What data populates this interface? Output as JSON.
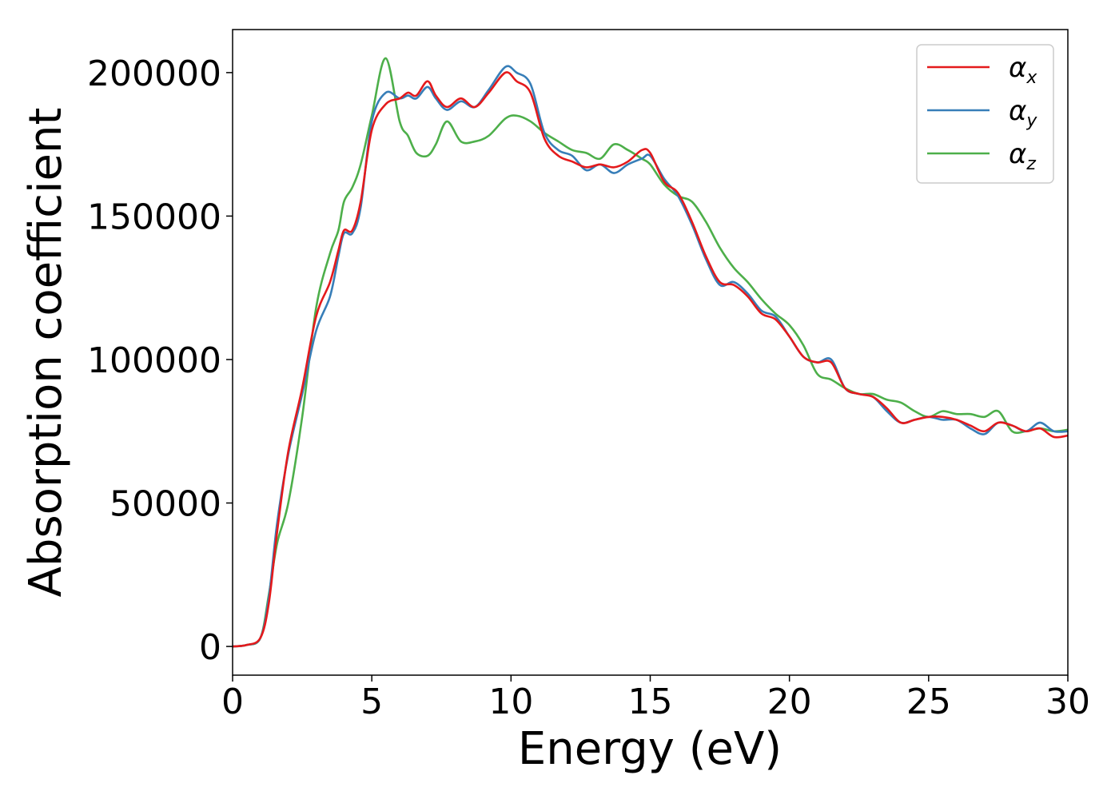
{
  "chart_data": {
    "type": "line",
    "title": "",
    "xlabel": "Energy (eV)",
    "ylabel": "Absorption coefficient",
    "xlim": [
      0,
      30
    ],
    "ylim": [
      -10000,
      215000
    ],
    "xticks": [
      0,
      5,
      10,
      15,
      20,
      25,
      30
    ],
    "yticks": [
      0,
      50000,
      100000,
      150000,
      200000
    ],
    "grid": false,
    "legend_position": "top-right",
    "series": [
      {
        "name": "αx",
        "symbol": "α",
        "subscript": "x",
        "color": "#e41a1c",
        "x": [
          0,
          0.5,
          1.0,
          1.3,
          1.6,
          2.0,
          2.5,
          3.0,
          3.5,
          3.8,
          4.0,
          4.3,
          4.6,
          5.0,
          5.5,
          6.0,
          6.3,
          6.6,
          7.0,
          7.3,
          7.7,
          8.2,
          8.7,
          9.2,
          9.8,
          10.2,
          10.7,
          11.2,
          11.7,
          12.2,
          12.7,
          13.2,
          13.7,
          14.2,
          14.7,
          15.0,
          15.5,
          16.0,
          16.5,
          17.0,
          17.5,
          18.0,
          18.5,
          19.0,
          19.5,
          20.0,
          20.5,
          21.0,
          21.5,
          22.0,
          22.5,
          23.0,
          23.5,
          24.0,
          24.5,
          25.0,
          25.5,
          26.0,
          26.5,
          27.0,
          27.5,
          28.0,
          28.5,
          29.0,
          29.5,
          30.0
        ],
        "y": [
          0,
          500,
          3000,
          15000,
          40000,
          68000,
          90000,
          115000,
          127000,
          138000,
          145000,
          145000,
          155000,
          180000,
          189000,
          191000,
          193000,
          192000,
          197000,
          192000,
          188000,
          191000,
          188000,
          193000,
          200000,
          197000,
          193000,
          177000,
          171000,
          169000,
          167000,
          168000,
          167000,
          169000,
          173000,
          172000,
          162000,
          158000,
          148000,
          136000,
          127000,
          126000,
          122000,
          116000,
          114000,
          108000,
          101000,
          99000,
          99000,
          90000,
          88000,
          87000,
          83000,
          78000,
          79000,
          80000,
          80000,
          79000,
          77000,
          75000,
          78000,
          77000,
          75000,
          76000,
          73000,
          73500
        ]
      },
      {
        "name": "αy",
        "symbol": "α",
        "subscript": "y",
        "color": "#377eb8",
        "x": [
          0,
          0.5,
          1.0,
          1.3,
          1.6,
          2.0,
          2.5,
          3.0,
          3.5,
          3.8,
          4.0,
          4.3,
          4.6,
          5.0,
          5.5,
          6.0,
          6.3,
          6.6,
          7.0,
          7.3,
          7.7,
          8.2,
          8.7,
          9.2,
          9.8,
          10.2,
          10.7,
          11.2,
          11.7,
          12.2,
          12.7,
          13.2,
          13.7,
          14.2,
          14.7,
          15.0,
          15.5,
          16.0,
          16.5,
          17.0,
          17.5,
          18.0,
          18.5,
          19.0,
          19.5,
          20.0,
          20.5,
          21.0,
          21.5,
          22.0,
          22.5,
          23.0,
          23.5,
          24.0,
          24.5,
          25.0,
          25.5,
          26.0,
          26.5,
          27.0,
          27.5,
          28.0,
          28.5,
          29.0,
          29.5,
          30.0
        ],
        "y": [
          0,
          500,
          3000,
          17000,
          43000,
          67000,
          88000,
          110000,
          122000,
          136000,
          144000,
          144000,
          153000,
          183000,
          193000,
          191000,
          192000,
          191000,
          195000,
          191000,
          187000,
          190000,
          188000,
          194000,
          202000,
          200000,
          196000,
          179000,
          173000,
          171000,
          166000,
          168000,
          165000,
          168000,
          170000,
          171000,
          163000,
          157000,
          147000,
          135000,
          126000,
          127000,
          123000,
          117000,
          115000,
          108000,
          101000,
          99000,
          100000,
          90000,
          88000,
          87000,
          82000,
          78000,
          79000,
          80000,
          79000,
          79000,
          76000,
          74000,
          78000,
          77000,
          75000,
          78000,
          75000,
          75000
        ]
      },
      {
        "name": "αz",
        "symbol": "α",
        "subscript": "z",
        "color": "#4daf4a",
        "x": [
          0,
          0.5,
          1.0,
          1.3,
          1.6,
          2.0,
          2.5,
          3.0,
          3.5,
          3.8,
          4.0,
          4.3,
          4.6,
          5.0,
          5.5,
          6.0,
          6.3,
          6.6,
          7.0,
          7.3,
          7.7,
          8.2,
          8.7,
          9.2,
          9.8,
          10.2,
          10.7,
          11.2,
          11.7,
          12.2,
          12.7,
          13.2,
          13.7,
          14.2,
          14.7,
          15.0,
          15.5,
          16.0,
          16.5,
          17.0,
          17.5,
          18.0,
          18.5,
          19.0,
          19.5,
          20.0,
          20.5,
          21.0,
          21.5,
          22.0,
          22.5,
          23.0,
          23.5,
          24.0,
          24.5,
          25.0,
          25.5,
          26.0,
          26.5,
          27.0,
          27.5,
          28.0,
          28.5,
          29.0,
          29.5,
          30.0
        ],
        "y": [
          0,
          500,
          3000,
          18000,
          36000,
          50000,
          80000,
          118000,
          137000,
          145000,
          155000,
          160000,
          168000,
          185000,
          205000,
          183000,
          178000,
          172000,
          171000,
          175000,
          183000,
          176000,
          176000,
          178000,
          184000,
          185000,
          183000,
          179000,
          176000,
          173000,
          172000,
          170000,
          175000,
          173000,
          170000,
          168000,
          161000,
          157000,
          155000,
          148000,
          139000,
          132000,
          127000,
          121000,
          116000,
          112000,
          105000,
          95000,
          93000,
          90000,
          88000,
          88000,
          86000,
          85000,
          82000,
          80000,
          82000,
          81000,
          81000,
          80000,
          82000,
          75000,
          75000,
          76000,
          75000,
          75500
        ]
      }
    ]
  }
}
